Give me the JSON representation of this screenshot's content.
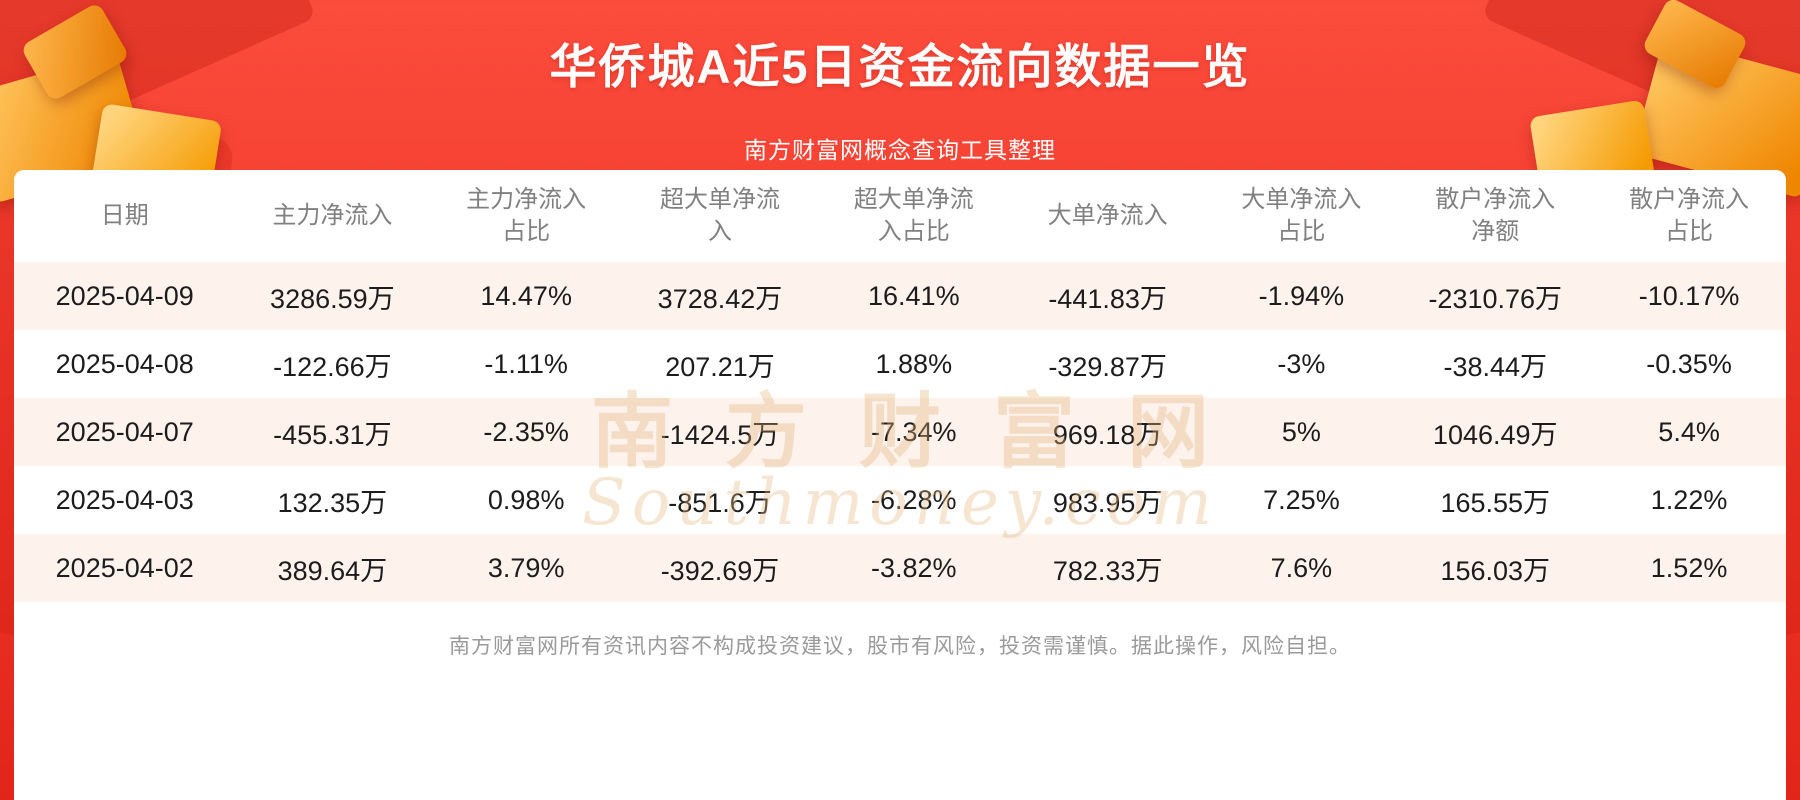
{
  "page": {
    "title": "华侨城A近5日资金流向数据一览",
    "subtitle": "南方财富网概念查询工具整理",
    "footer": "南方财富网所有资讯内容不构成投资建议，股市有风险，投资需谨慎。据此操作，风险自担。",
    "watermark_cn": "南方财富网",
    "watermark_en": "Southmoney.com"
  },
  "chart_data": {
    "type": "table",
    "title": "华侨城A近5日资金流向数据一览",
    "columns": [
      "日期",
      "主力净流入",
      "主力净流入占比",
      "超大单净流入",
      "超大单净流入占比",
      "大单净流入",
      "大单净流入占比",
      "散户净流入净额",
      "散户净流入占比"
    ],
    "rows": [
      [
        "2025-04-09",
        "3286.59万",
        "14.47%",
        "3728.42万",
        "16.41%",
        "-441.83万",
        "-1.94%",
        "-2310.76万",
        "-10.17%"
      ],
      [
        "2025-04-08",
        "-122.66万",
        "-1.11%",
        "207.21万",
        "1.88%",
        "-329.87万",
        "-3%",
        "-38.44万",
        "-0.35%"
      ],
      [
        "2025-04-07",
        "-455.31万",
        "-2.35%",
        "-1424.5万",
        "-7.34%",
        "969.18万",
        "5%",
        "1046.49万",
        "5.4%"
      ],
      [
        "2025-04-03",
        "132.35万",
        "0.98%",
        "-851.6万",
        "-6.28%",
        "983.95万",
        "7.25%",
        "165.55万",
        "1.22%"
      ],
      [
        "2025-04-02",
        "389.64万",
        "3.79%",
        "-392.69万",
        "-3.82%",
        "782.33万",
        "7.6%",
        "156.03万",
        "1.52%"
      ]
    ]
  },
  "colors": {
    "red_top": "#fb4c3c",
    "red_bottom": "#e1251a",
    "row_alt": "#fdf2ec",
    "gold": "#f59a00",
    "text_gray": "#808080",
    "text_dark": "#1c1c1c"
  }
}
